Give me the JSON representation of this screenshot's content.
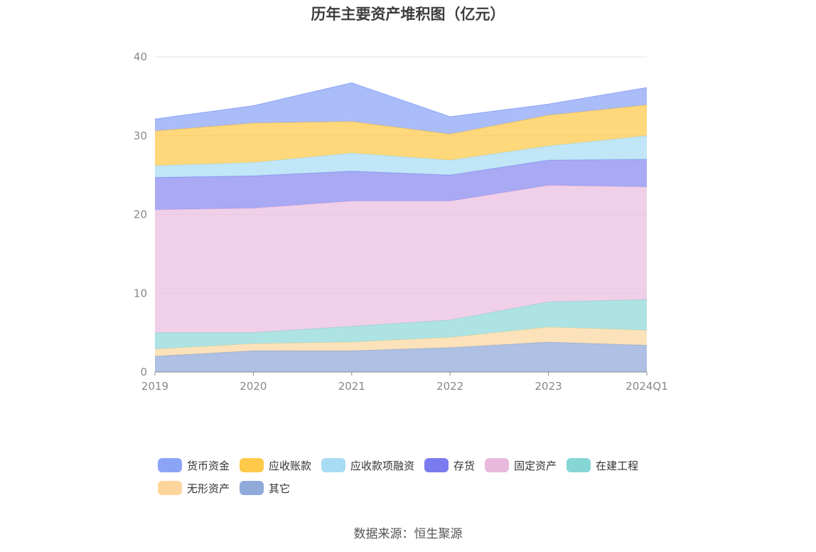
{
  "title": "历年主要资产堆积图（亿元）",
  "source": "数据来源：恒生聚源",
  "chart_data": {
    "type": "area",
    "stacked": true,
    "categories": [
      "2019",
      "2020",
      "2021",
      "2022",
      "2023",
      "2024Q1"
    ],
    "ylim": [
      0,
      40
    ],
    "yticks": [
      "0",
      "10",
      "20",
      "30",
      "40"
    ],
    "grid": true,
    "legend_position": "bottom",
    "series": [
      {
        "name": "其它",
        "color": "#8fa8d8",
        "values": [
          2.0,
          2.7,
          2.7,
          3.1,
          3.8,
          3.4
        ]
      },
      {
        "name": "无形资产",
        "color": "#fbd79f",
        "values": [
          0.9,
          0.9,
          1.1,
          1.3,
          1.9,
          1.9
        ]
      },
      {
        "name": "在建工程",
        "color": "#8fd8d8",
        "values": [
          2.1,
          1.4,
          2.0,
          2.2,
          3.2,
          3.9
        ]
      },
      {
        "name": "固定资产",
        "color": "#e9bedf",
        "values": [
          15.6,
          15.8,
          15.9,
          15.1,
          14.8,
          14.3
        ]
      },
      {
        "name": "存货",
        "color": "#8888f0",
        "values": [
          4.1,
          4.1,
          3.8,
          3.3,
          3.2,
          3.5
        ]
      },
      {
        "name": "应收款项融资",
        "color": "#a8dcf4",
        "values": [
          1.5,
          1.7,
          2.3,
          1.9,
          1.8,
          3.0
        ]
      },
      {
        "name": "应收账款",
        "color": "#ffc94a",
        "values": [
          4.4,
          5.0,
          4.0,
          3.3,
          3.9,
          3.9
        ]
      },
      {
        "name": "货币资金",
        "color": "#8ba4f6",
        "values": [
          1.5,
          2.2,
          4.9,
          2.2,
          1.4,
          2.2
        ]
      }
    ]
  },
  "legend": [
    {
      "label": "货币资金",
      "color": "#8ba4f6"
    },
    {
      "label": "应收账款",
      "color": "#ffc94a"
    },
    {
      "label": "应收款项融资",
      "color": "#a8dcf4"
    },
    {
      "label": "存货",
      "color": "#7b7bef"
    },
    {
      "label": "固定资产",
      "color": "#e9b8dd"
    },
    {
      "label": "在建工程",
      "color": "#86d6d6"
    },
    {
      "label": "无形资产",
      "color": "#fdd49b"
    },
    {
      "label": "其它",
      "color": "#8faad9"
    }
  ]
}
